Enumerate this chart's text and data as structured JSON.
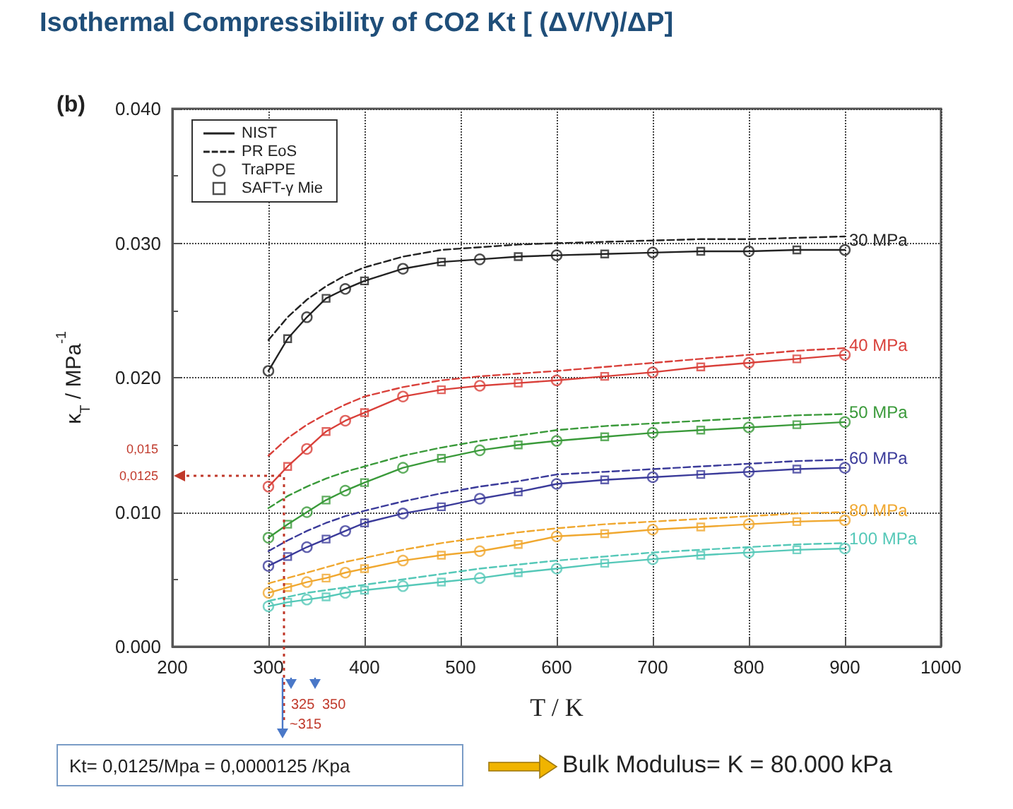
{
  "chart_data": {
    "type": "line",
    "title": "Isothermal Compressibility of CO2 Kt [ (ΔV/V)/ΔP]",
    "xlabel": "T / K",
    "ylabel": "κ$_{T}$ / MPa$^{-1}$",
    "x": [
      300,
      320,
      340,
      360,
      380,
      400,
      440,
      480,
      520,
      560,
      600,
      650,
      700,
      750,
      800,
      850,
      900
    ],
    "xlim": [
      200,
      1000
    ],
    "xticks": [
      200,
      300,
      400,
      500,
      600,
      700,
      800,
      900,
      1000
    ],
    "ylim": [
      0,
      0.04
    ],
    "yticks": [
      {
        "value": 0,
        "label": "0.000"
      },
      {
        "value": 0.01,
        "label": "0.010"
      },
      {
        "value": 0.02,
        "label": "0.020"
      },
      {
        "value": 0.03,
        "label": "0.030"
      },
      {
        "value": 0.04,
        "label": "0.040"
      }
    ],
    "grid": true,
    "legend": "top left",
    "series": [
      {
        "name": "NIST",
        "line_style": "solid",
        "marker": "none",
        "color": "#222222",
        "values": [
          0.0205,
          0.0229,
          0.0245,
          0.0259,
          0.0266,
          0.0272,
          0.0281,
          0.0286,
          0.0288,
          0.029,
          0.0291,
          0.0292,
          0.0293,
          0.0294,
          0.0294,
          0.0295,
          0.0295
        ]
      },
      {
        "name": "PR EoS",
        "line_style": "dashed",
        "marker": "none",
        "color": "#222222",
        "values": [
          0.0228,
          0.0245,
          0.0258,
          0.0268,
          0.0276,
          0.0282,
          0.029,
          0.0295,
          0.0297,
          0.0299,
          0.03,
          0.0301,
          0.0302,
          0.0303,
          0.0303,
          0.0304,
          0.0305
        ]
      },
      {
        "name": "TraPPE",
        "type": "scatter",
        "marker": "circle",
        "color": "#222222",
        "values": [
          0.0205,
          null,
          0.0245,
          null,
          0.0266,
          null,
          0.0281,
          null,
          0.0288,
          null,
          0.0291,
          null,
          0.0293,
          null,
          0.0294,
          null,
          0.0295
        ]
      },
      {
        "name": "SAFT-γ Mie",
        "type": "scatter",
        "marker": "square",
        "color": "#222222",
        "values": [
          null,
          0.0229,
          null,
          0.0259,
          null,
          0.0272,
          null,
          0.0286,
          null,
          0.029,
          null,
          0.0292,
          null,
          0.0294,
          null,
          0.0295,
          null
        ]
      },
      {
        "line_style": "solid",
        "marker": "none",
        "color": "#d9403a",
        "values": [
          0.0119,
          0.0134,
          0.0147,
          0.016,
          0.0168,
          0.0174,
          0.0186,
          0.0191,
          0.0194,
          0.0196,
          0.0198,
          0.0201,
          0.0204,
          0.0208,
          0.0211,
          0.0214,
          0.0217
        ]
      },
      {
        "line_style": "dashed",
        "marker": "none",
        "color": "#d9403a",
        "values": [
          0.0142,
          0.0155,
          0.0165,
          0.0173,
          0.018,
          0.0186,
          0.0193,
          0.0198,
          0.0201,
          0.0203,
          0.0205,
          0.0208,
          0.0211,
          0.0214,
          0.0217,
          0.022,
          0.0222
        ]
      },
      {
        "type": "scatter",
        "marker": "circle",
        "color": "#d9403a",
        "values": [
          0.0119,
          null,
          0.0147,
          null,
          0.0168,
          null,
          0.0186,
          null,
          0.0194,
          null,
          0.0198,
          null,
          0.0204,
          null,
          0.0211,
          null,
          0.0217
        ]
      },
      {
        "type": "scatter",
        "marker": "square",
        "color": "#d9403a",
        "values": [
          null,
          0.0134,
          null,
          0.016,
          null,
          0.0174,
          null,
          0.0191,
          null,
          0.0196,
          null,
          0.0201,
          null,
          0.0208,
          null,
          0.0214,
          null
        ]
      },
      {
        "line_style": "solid",
        "marker": "none",
        "color": "#3a9a3a",
        "values": [
          0.0081,
          0.0091,
          0.01,
          0.0109,
          0.0116,
          0.0122,
          0.0133,
          0.014,
          0.0146,
          0.015,
          0.0153,
          0.0156,
          0.0159,
          0.0161,
          0.0163,
          0.0165,
          0.0167
        ]
      },
      {
        "line_style": "dashed",
        "marker": "none",
        "color": "#3a9a3a",
        "values": [
          0.0103,
          0.0112,
          0.0119,
          0.0125,
          0.013,
          0.0134,
          0.0142,
          0.0148,
          0.0153,
          0.0157,
          0.0161,
          0.0164,
          0.0166,
          0.0168,
          0.017,
          0.0172,
          0.0173
        ]
      },
      {
        "type": "scatter",
        "marker": "circle",
        "color": "#3a9a3a",
        "values": [
          0.0081,
          null,
          0.01,
          null,
          0.0116,
          null,
          0.0133,
          null,
          0.0146,
          null,
          0.0153,
          null,
          0.0159,
          null,
          0.0163,
          null,
          0.0167
        ]
      },
      {
        "type": "scatter",
        "marker": "square",
        "color": "#3a9a3a",
        "values": [
          null,
          0.0091,
          null,
          0.0109,
          null,
          0.0122,
          null,
          0.014,
          null,
          0.015,
          null,
          0.0156,
          null,
          0.0161,
          null,
          0.0165,
          null
        ]
      },
      {
        "line_style": "solid",
        "marker": "none",
        "color": "#3b3b9a",
        "values": [
          0.006,
          0.0067,
          0.0074,
          0.008,
          0.0086,
          0.0092,
          0.0099,
          0.0104,
          0.011,
          0.0115,
          0.0121,
          0.0124,
          0.0126,
          0.0128,
          0.013,
          0.0132,
          0.0133
        ]
      },
      {
        "line_style": "dashed",
        "marker": "none",
        "color": "#3b3b9a",
        "values": [
          0.0071,
          0.0079,
          0.0086,
          0.0092,
          0.0097,
          0.0101,
          0.0108,
          0.0114,
          0.0119,
          0.0123,
          0.0128,
          0.013,
          0.0132,
          0.0134,
          0.0136,
          0.0138,
          0.0139
        ]
      },
      {
        "type": "scatter",
        "marker": "circle",
        "color": "#3b3b9a",
        "values": [
          0.006,
          null,
          0.0074,
          null,
          0.0086,
          null,
          0.0099,
          null,
          0.011,
          null,
          0.0121,
          null,
          0.0126,
          null,
          0.013,
          null,
          0.0133
        ]
      },
      {
        "type": "scatter",
        "marker": "square",
        "color": "#3b3b9a",
        "values": [
          null,
          0.0067,
          null,
          0.008,
          null,
          0.0092,
          null,
          0.0104,
          null,
          0.0115,
          null,
          0.0124,
          null,
          0.0128,
          null,
          0.0132,
          null
        ]
      },
      {
        "line_style": "solid",
        "marker": "none",
        "color": "#f0a830",
        "values": [
          0.004,
          0.0044,
          0.0048,
          0.0051,
          0.0055,
          0.0058,
          0.0064,
          0.0068,
          0.0071,
          0.0076,
          0.0082,
          0.0084,
          0.0087,
          0.0089,
          0.0091,
          0.0093,
          0.0094
        ]
      },
      {
        "line_style": "dashed",
        "marker": "none",
        "color": "#f0a830",
        "values": [
          0.0047,
          0.0051,
          0.0055,
          0.0059,
          0.0063,
          0.0066,
          0.0072,
          0.0077,
          0.0081,
          0.0085,
          0.0088,
          0.0091,
          0.0093,
          0.0095,
          0.0097,
          0.0099,
          0.01
        ]
      },
      {
        "type": "scatter",
        "marker": "circle",
        "color": "#f0a830",
        "values": [
          0.004,
          null,
          0.0048,
          null,
          0.0055,
          null,
          0.0064,
          null,
          0.0071,
          null,
          0.0082,
          null,
          0.0087,
          null,
          0.0091,
          null,
          0.0094
        ]
      },
      {
        "type": "scatter",
        "marker": "square",
        "color": "#f0a830",
        "values": [
          null,
          0.0044,
          null,
          0.0051,
          null,
          0.0058,
          null,
          0.0068,
          null,
          0.0076,
          null,
          0.0084,
          null,
          0.0089,
          null,
          0.0093,
          null
        ]
      },
      {
        "line_style": "solid",
        "marker": "none",
        "color": "#55c8b8",
        "values": [
          0.003,
          0.0033,
          0.0035,
          0.0037,
          0.004,
          0.0042,
          0.0045,
          0.0048,
          0.0051,
          0.0055,
          0.0058,
          0.0062,
          0.0065,
          0.0068,
          0.007,
          0.0072,
          0.0073
        ]
      },
      {
        "line_style": "dashed",
        "marker": "none",
        "color": "#55c8b8",
        "values": [
          0.0034,
          0.0037,
          0.004,
          0.0042,
          0.0044,
          0.0046,
          0.005,
          0.0054,
          0.0058,
          0.0061,
          0.0064,
          0.0067,
          0.007,
          0.0072,
          0.0074,
          0.0076,
          0.0077
        ]
      },
      {
        "type": "scatter",
        "marker": "circle",
        "color": "#55c8b8",
        "values": [
          0.003,
          null,
          0.0035,
          null,
          0.004,
          null,
          0.0045,
          null,
          0.0051,
          null,
          0.0058,
          null,
          0.0065,
          null,
          0.007,
          null,
          0.0073
        ]
      },
      {
        "type": "scatter",
        "marker": "square",
        "color": "#55c8b8",
        "values": [
          null,
          0.0033,
          null,
          0.0037,
          null,
          0.0042,
          null,
          0.0048,
          null,
          0.0055,
          null,
          0.0062,
          null,
          0.0068,
          null,
          0.0072,
          null
        ]
      }
    ],
    "annotations": [
      "(b)",
      "Kt= 0,0125/Mpa = 0,0000125 /Kpa",
      "Bulk Modulus= K = 80.000 kPa",
      "0,015",
      "0,0125",
      "325",
      "350",
      "~315",
      "30 MPa",
      "40 MPa",
      "50 MPa",
      "60 MPa",
      "80 MPa",
      "100 MPa"
    ]
  }
}
